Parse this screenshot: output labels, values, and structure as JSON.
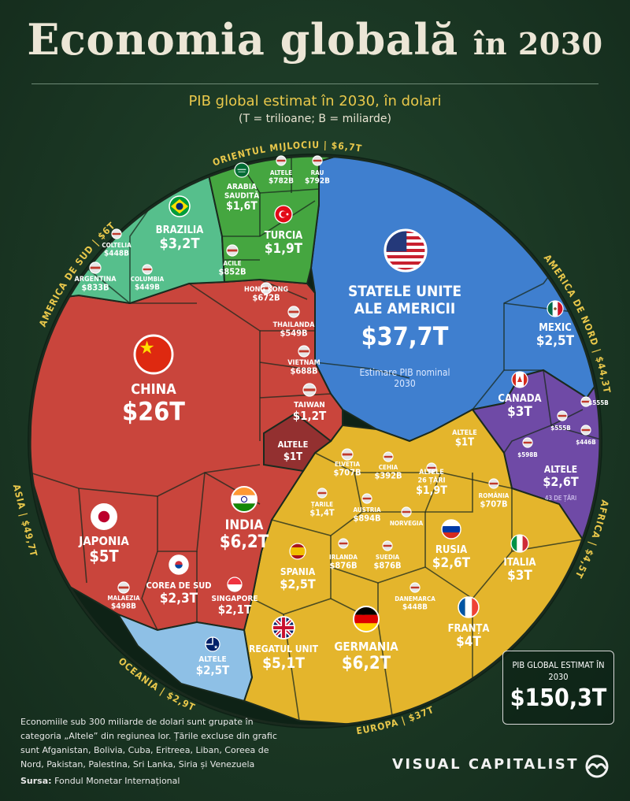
{
  "header": {
    "title_main": "Economia globală",
    "title_tail": "în 2030",
    "subtitle": "PIB global estimat în 2030, în dolari",
    "units_note": "(T = trilioane; B = miliarde)"
  },
  "total": {
    "label": "PIB GLOBAL ESTIMAT ÎN 2030",
    "value": "$150,3T"
  },
  "footnote": "Economiile sub 300 miliarde de dolari sunt grupate în categoria „Altele” din regiunea lor. Țările excluse din grafic sunt Afganistan, Bolivia, Cuba, Eritreea, Liban, Coreea de Nord, Pakistan, Palestina, Sri Lanka, Siria și Venezuela",
  "source": {
    "label": "Sursa:",
    "text": "Fondul Monetar Internațional"
  },
  "brand": "VISUAL CAPITALIST",
  "colors": {
    "america_nord": "#3f7fcf",
    "asia": "#c9453c",
    "europa": "#e4b52c",
    "africa": "#6f4aa6",
    "oceania": "#8ec0e6",
    "america_sud": "#56bf8c",
    "orientul_mijlociu": "#45a640",
    "altele_global": "#933030",
    "label_yellow": "#e9c84b"
  },
  "chart_data": {
    "type": "treemap",
    "units": "USD",
    "total": 150.3,
    "regions": [
      {
        "name": "AMERICA DE NORD",
        "value_label": "$44,3T",
        "value": 44.3,
        "color": "#3f7fcf",
        "countries": [
          {
            "name": "STATELE UNITE ALE AMERICII",
            "value_label": "$37,7T",
            "value": 37700,
            "note": "Estimare PIB nominal 2030",
            "flag": "flag-us"
          },
          {
            "name": "MEXIC",
            "value_label": "$2,5T",
            "value": 2500,
            "flag": "flag-mexico"
          },
          {
            "name": "CANADA",
            "value_label": "$3T",
            "value": 3000,
            "flag": "flag-canada"
          },
          {
            "name": "ALTELE",
            "value_label": "$1T",
            "value": 1000
          }
        ]
      },
      {
        "name": "ASIA",
        "value_label": "$49,7T",
        "value": 49.7,
        "color": "#c9453c",
        "countries": [
          {
            "name": "CHINA",
            "value_label": "$26T",
            "value": 26000,
            "flag": "flag-china"
          },
          {
            "name": "INDIA",
            "value_label": "$6,2T",
            "value": 6200,
            "flag": "flag-india"
          },
          {
            "name": "JAPONIA",
            "value_label": "$5T",
            "value": 5000,
            "flag": "flag-japan"
          },
          {
            "name": "COREA DE SUD",
            "value_label": "$2,3T",
            "value": 2300,
            "flag": "flag-south-korea"
          },
          {
            "name": "SINGAPORE",
            "value_label": "$2,1T",
            "value": 2100,
            "flag": "flag-singapore"
          },
          {
            "name": "TAIWAN",
            "value_label": "$1,2T",
            "value": 1200,
            "flag": "flag-taiwan"
          },
          {
            "name": "VIETNAM",
            "value_label": "$688B",
            "value": 688,
            "flag": "flag-vietnam"
          },
          {
            "name": "HONG KONG",
            "value_label": "$672B",
            "value": 672,
            "flag": "flag-hong-kong"
          },
          {
            "name": "THAILANDA",
            "value_label": "$549B",
            "value": 549,
            "flag": "flag-thailand"
          },
          {
            "name": "MALAEZIA",
            "value_label": "$498B",
            "value": 498,
            "flag": "flag-malaysia"
          }
        ]
      },
      {
        "name": "EUROPA",
        "value_label": "$37T",
        "value": 37.0,
        "color": "#e4b52c",
        "countries": [
          {
            "name": "GERMANIA",
            "value_label": "$6,2T",
            "value": 6200,
            "flag": "flag-germany"
          },
          {
            "name": "REGATUL UNIT",
            "value_label": "$5,1T",
            "value": 5100,
            "flag": "flag-uk"
          },
          {
            "name": "FRANȚA",
            "value_label": "$4T",
            "value": 4000,
            "flag": "flag-france"
          },
          {
            "name": "ITALIA",
            "value_label": "$3T",
            "value": 3000,
            "flag": "flag-italy"
          },
          {
            "name": "RUSIA",
            "value_label": "$2,6T",
            "value": 2600,
            "flag": "flag-russia"
          },
          {
            "name": "SPANIA",
            "value_label": "$2,5T",
            "value": 2500,
            "flag": "flag-spain"
          },
          {
            "name": "ALTELE",
            "value_label": "$1,9T",
            "value": 1900,
            "note": "26 ȚĂRI",
            "flag": "flag-czechia"
          },
          {
            "name": "ȚARILE DE JOS",
            "value_label": "$1,4T",
            "value": 1400,
            "flag": "flag-netherlands"
          },
          {
            "name": "AUSTRIA",
            "value_label": "$894B",
            "value": 894,
            "flag": "flag-austria"
          },
          {
            "name": "IRLANDA",
            "value_label": "$876B",
            "value": 876,
            "flag": "flag-ireland"
          },
          {
            "name": "SUEDIA",
            "value_label": "$876B",
            "value": 876,
            "flag": "flag-sweden"
          },
          {
            "name": "NORVEGIA",
            "value_label": "$866B",
            "value": 866,
            "flag": "flag-norway"
          },
          {
            "name": "ELVEȚIA",
            "value_label": "$707B",
            "value": 707,
            "flag": "flag-switzerland"
          },
          {
            "name": "ROMÂNIA",
            "value_label": "$707B",
            "value": 707,
            "flag": "flag-romania"
          },
          {
            "name": "DANEMARCA",
            "value_label": "$448B",
            "value": 448,
            "flag": "flag-denmark"
          },
          {
            "name": "CEHIA",
            "value_label": "$392B",
            "value": 392,
            "flag": "flag-czechia"
          }
        ]
      },
      {
        "name": "AFRICA",
        "value_label": "$4,5T",
        "value": 4.5,
        "color": "#6f4aa6",
        "countries": [
          {
            "name": "ALTELE",
            "value_label": "$2,6T",
            "value": 2600,
            "note": "43 DE ȚĂRI"
          },
          {
            "name": "",
            "value_label": "$555B",
            "value": 555,
            "flag": "flag-nigeria"
          },
          {
            "name": "",
            "value_label": "$555B",
            "value": 555,
            "flag": "flag-egypt"
          },
          {
            "name": "",
            "value_label": "$446B",
            "value": 446,
            "flag": "flag-algeria"
          },
          {
            "name": "",
            "value_label": "$598B",
            "value": 598,
            "flag": "flag-south-africa"
          }
        ]
      },
      {
        "name": "OCEANIA",
        "value_label": "$2,9T",
        "value": 2.9,
        "color": "#8ec0e6",
        "countries": [
          {
            "name": "ALTELE",
            "value_label": "$2,5T",
            "value": 2500,
            "flag": "flag-australia"
          }
        ]
      },
      {
        "name": "AMERICA DE SUD",
        "value_label": "$6T",
        "value": 6.0,
        "color": "#56bf8c",
        "countries": [
          {
            "name": "BRAZILIA",
            "value_label": "$3,2T",
            "value": 3200,
            "flag": "flag-brazil"
          },
          {
            "name": "ARGENTINA",
            "value_label": "$833B",
            "value": 833,
            "flag": "flag-argentina"
          },
          {
            "name": "CHILE",
            "value_label": "$852B",
            "value": 852,
            "flag": "flag-chile"
          },
          {
            "name": "COLUMBIA",
            "value_label": "$449B",
            "value": 449,
            "flag": "flag-colombia"
          },
          {
            "name": "COLTELIA",
            "value_label": "$448B",
            "value": 448,
            "flag": "flag-paraguay"
          }
        ]
      },
      {
        "name": "ORIENTUL MIJLOCIU",
        "value_label": "$6,7T",
        "value": 6.7,
        "color": "#45a640",
        "countries": [
          {
            "name": "ARABIA SAUDITĂ",
            "value_label": "$1,6T",
            "value": 1600,
            "flag": "flag-saudi"
          },
          {
            "name": "TURCIA",
            "value_label": "$1,9T",
            "value": 1900,
            "flag": "flag-turkey"
          },
          {
            "name": "ALTELE",
            "value_label": "$782B",
            "value": 782,
            "flag": "flag-iran"
          },
          {
            "name": "RAU",
            "value_label": "$792B",
            "value": 792,
            "flag": "flag-uae"
          }
        ]
      },
      {
        "name": "ALTELE",
        "value_label": "$1T",
        "value": 1.0,
        "color": "#933030",
        "countries": []
      }
    ]
  }
}
